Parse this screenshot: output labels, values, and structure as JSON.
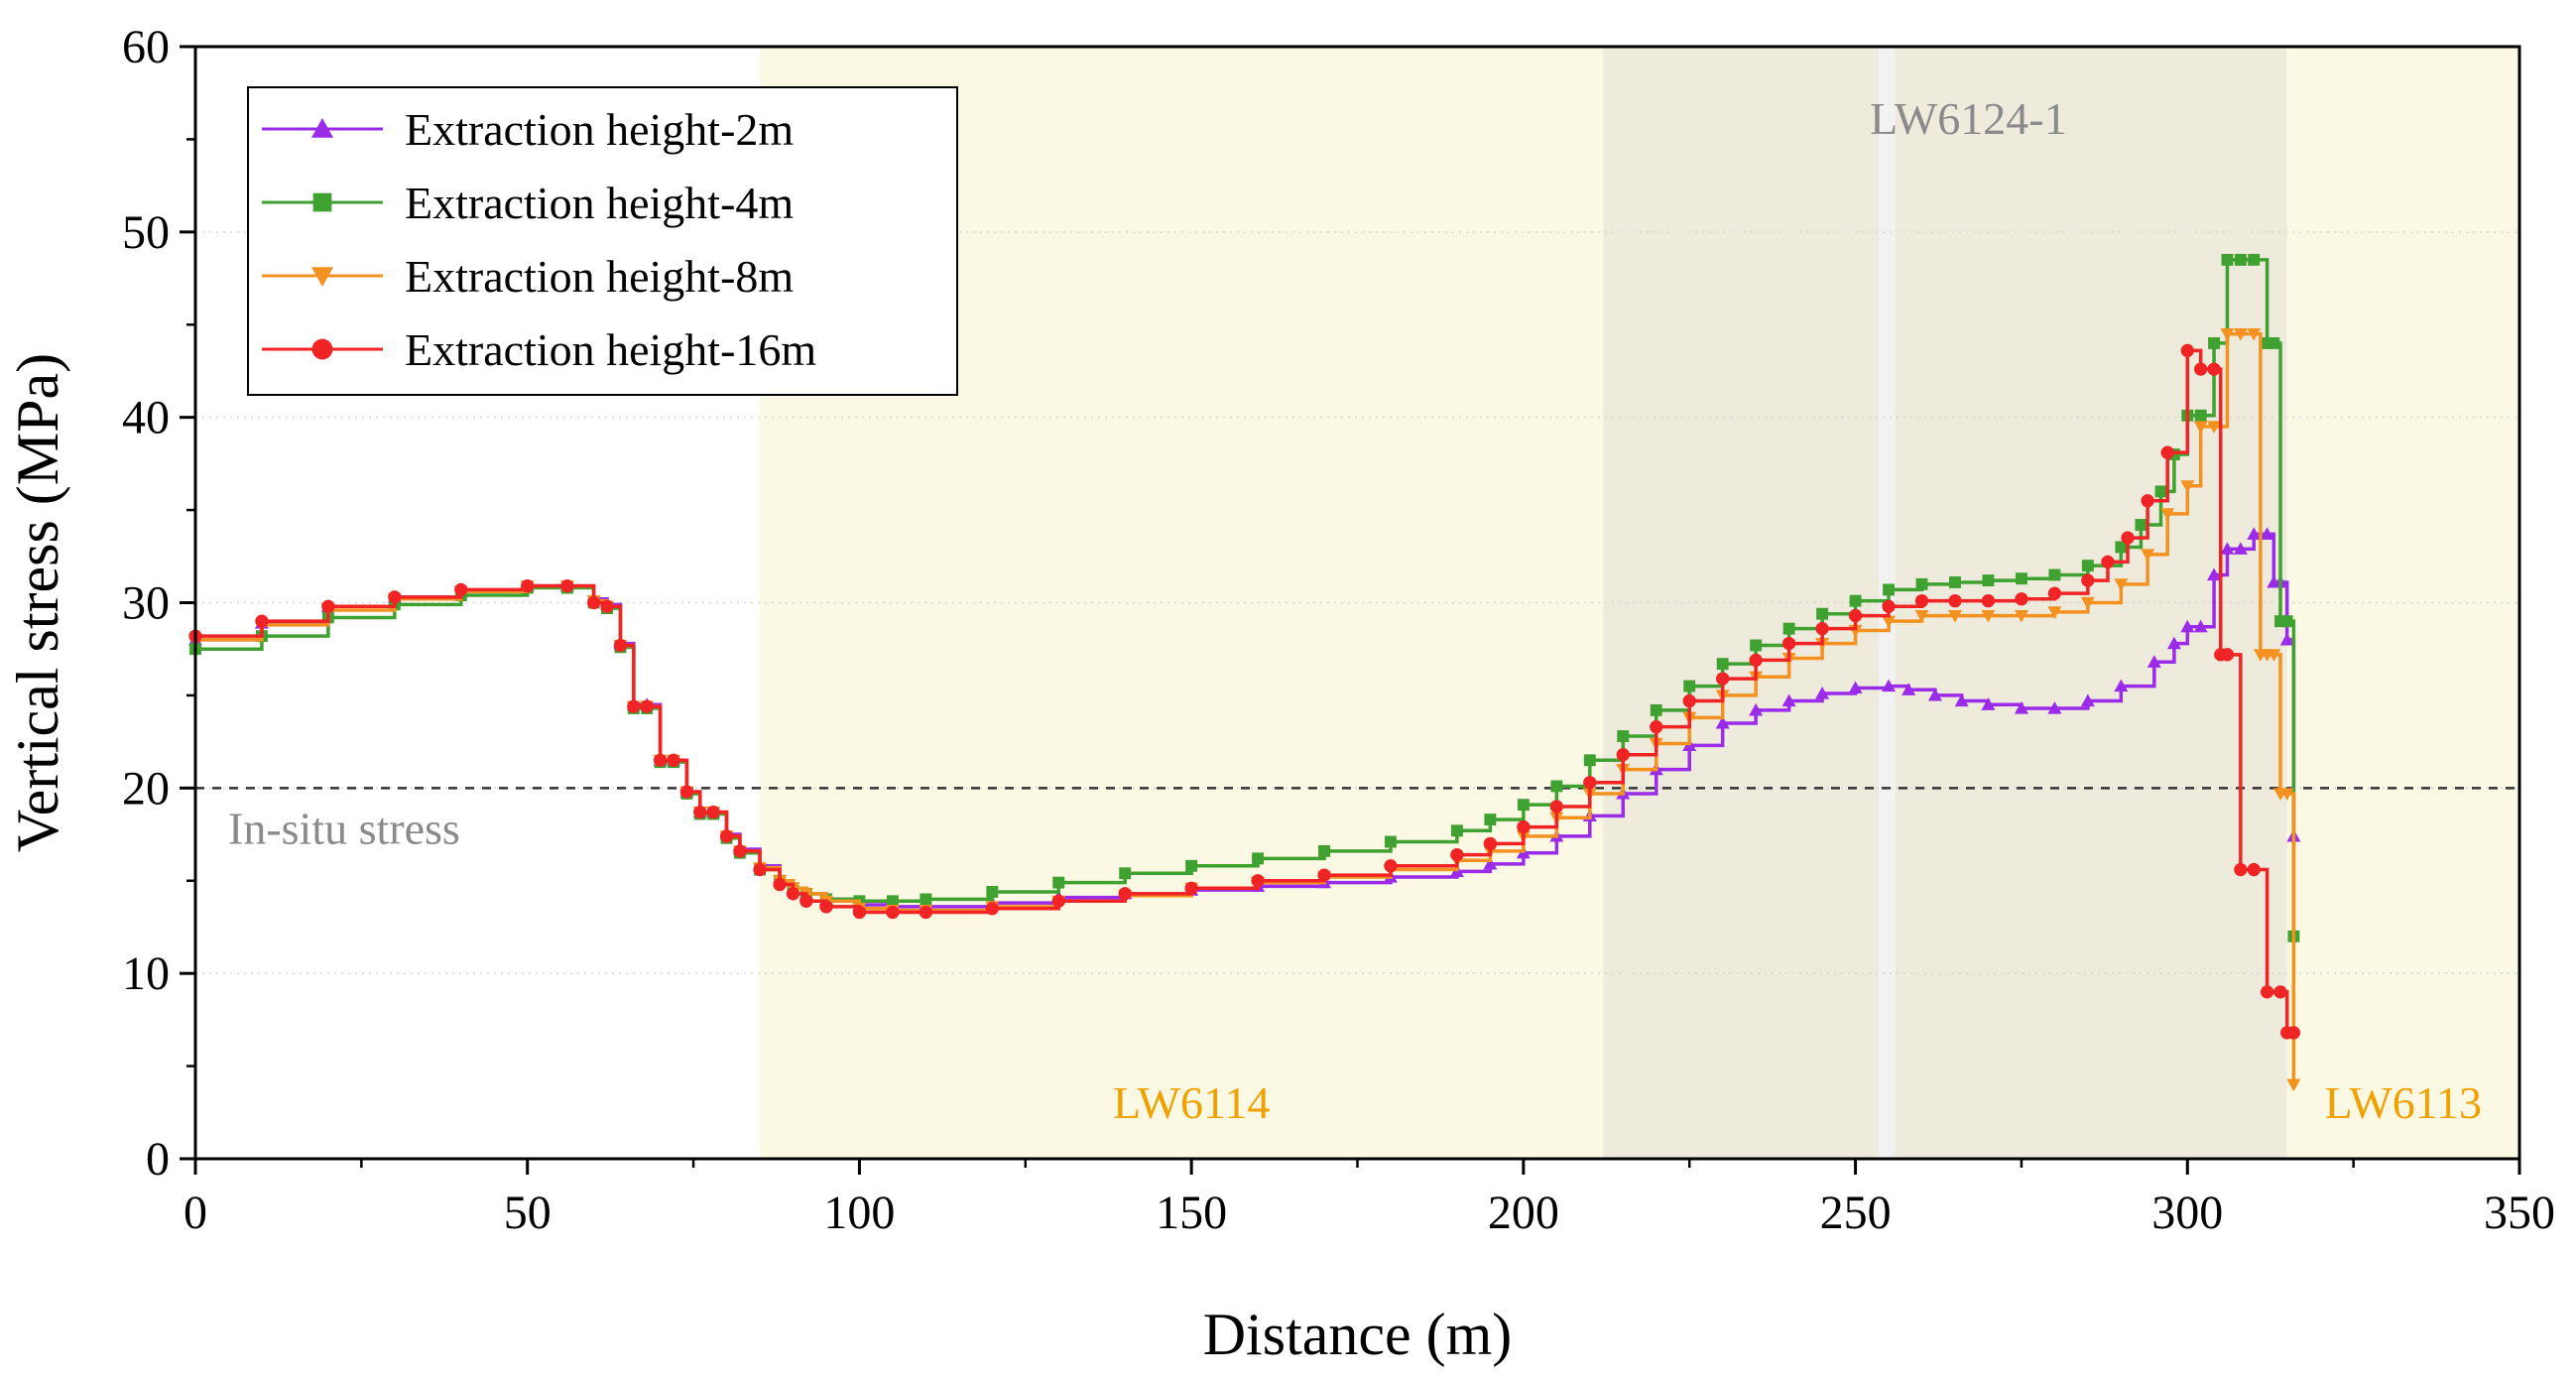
{
  "chart_data": {
    "type": "line",
    "title": "",
    "xlabel": "Distance (m)",
    "ylabel": "Vertical stress (MPa)",
    "xlim": [
      0,
      350
    ],
    "ylim": [
      0,
      60
    ],
    "xticks": [
      0,
      50,
      100,
      150,
      200,
      250,
      300,
      350
    ],
    "yticks": [
      0,
      10,
      20,
      30,
      40,
      50,
      60
    ],
    "xtick_labels": [
      "0",
      "50",
      "100",
      "150",
      "200",
      "250",
      "300",
      "350"
    ],
    "ytick_labels": [
      "0",
      "10",
      "20",
      "30",
      "40",
      "50",
      "60"
    ],
    "legend_position": "top-left",
    "reference_line": {
      "y": 20,
      "label": "In-situ stress",
      "color": "#333333"
    },
    "regions": [
      {
        "name": "LW6114",
        "x": [
          85,
          212
        ],
        "color": "#fbf8e3",
        "label_color": "#f0a000"
      },
      {
        "name": "LW6124-1",
        "x": [
          212,
          315
        ],
        "color": "#eeeadc",
        "label_color": "#8a8a8a"
      },
      {
        "name": "LW6113",
        "x": [
          315,
          350
        ],
        "color": "#fbf8e3",
        "label_color": "#f0a000"
      }
    ],
    "gap": {
      "x": [
        253.5,
        256
      ],
      "color": "#f2f2f2"
    },
    "series": [
      {
        "name": "Extraction height-2m",
        "color": "#9a2be8",
        "marker": "triangle-up",
        "x": [
          0,
          10,
          20,
          30,
          40,
          50,
          56,
          60,
          62,
          64,
          66,
          68,
          70,
          72,
          74,
          76,
          78,
          80,
          82,
          85,
          88,
          90,
          92,
          95,
          100,
          105,
          110,
          120,
          130,
          140,
          150,
          160,
          170,
          180,
          190,
          195,
          200,
          205,
          210,
          215,
          220,
          225,
          230,
          235,
          240,
          245,
          250,
          255,
          258,
          262,
          266,
          270,
          275,
          280,
          285,
          290,
          295,
          298,
          300,
          302,
          304,
          306,
          308,
          310,
          312,
          313,
          314,
          315,
          316
        ],
        "y": [
          28.0,
          28.9,
          29.8,
          30.3,
          30.6,
          30.9,
          30.9,
          30.2,
          29.9,
          27.8,
          24.5,
          24.5,
          21.5,
          21.5,
          19.8,
          18.7,
          18.7,
          17.5,
          16.7,
          15.8,
          15.0,
          14.6,
          14.3,
          14.0,
          13.7,
          13.6,
          13.6,
          13.8,
          14.1,
          14.3,
          14.5,
          14.7,
          14.9,
          15.2,
          15.5,
          15.9,
          16.5,
          17.4,
          18.5,
          19.7,
          21.0,
          22.3,
          23.5,
          24.2,
          24.7,
          25.1,
          25.4,
          25.5,
          25.3,
          25.0,
          24.7,
          24.5,
          24.3,
          24.3,
          24.7,
          25.5,
          26.8,
          27.8,
          28.7,
          28.7,
          31.5,
          32.9,
          32.9,
          33.7,
          33.7,
          31.1,
          31.1,
          28.0,
          17.4
        ]
      },
      {
        "name": "Extraction height-4m",
        "color": "#3fa12f",
        "marker": "square",
        "x": [
          0,
          10,
          20,
          30,
          40,
          50,
          56,
          60,
          62,
          64,
          66,
          68,
          70,
          72,
          74,
          76,
          78,
          80,
          82,
          85,
          88,
          90,
          92,
          95,
          100,
          105,
          110,
          120,
          130,
          140,
          150,
          160,
          170,
          180,
          190,
          195,
          200,
          205,
          210,
          215,
          220,
          225,
          230,
          235,
          240,
          245,
          250,
          255,
          260,
          265,
          270,
          275,
          280,
          285,
          290,
          293,
          296,
          298,
          300,
          302,
          304,
          306,
          308,
          310,
          312,
          313,
          314,
          315,
          316
        ],
        "y": [
          27.5,
          28.2,
          29.2,
          29.9,
          30.4,
          30.8,
          30.8,
          30.0,
          29.7,
          27.6,
          24.3,
          24.3,
          21.4,
          21.4,
          19.7,
          18.6,
          18.6,
          17.3,
          16.5,
          15.6,
          15.0,
          14.6,
          14.3,
          14.0,
          13.9,
          13.9,
          14.0,
          14.4,
          14.9,
          15.4,
          15.8,
          16.2,
          16.6,
          17.1,
          17.7,
          18.3,
          19.1,
          20.1,
          21.5,
          22.8,
          24.2,
          25.5,
          26.7,
          27.7,
          28.6,
          29.4,
          30.1,
          30.7,
          31.0,
          31.1,
          31.2,
          31.3,
          31.5,
          32.0,
          33.0,
          34.2,
          36.0,
          38.0,
          40.1,
          40.1,
          44.0,
          48.5,
          48.5,
          48.5,
          44.0,
          44.0,
          29.0,
          29.0,
          12.0
        ]
      },
      {
        "name": "Extraction height-8m",
        "color": "#f39220",
        "marker": "triangle-down",
        "x": [
          0,
          10,
          20,
          30,
          40,
          50,
          56,
          60,
          62,
          64,
          66,
          68,
          70,
          72,
          74,
          76,
          78,
          80,
          82,
          85,
          88,
          90,
          92,
          95,
          100,
          105,
          110,
          120,
          130,
          140,
          150,
          160,
          170,
          180,
          190,
          195,
          200,
          205,
          210,
          215,
          220,
          225,
          230,
          235,
          240,
          245,
          250,
          255,
          260,
          265,
          270,
          275,
          280,
          285,
          290,
          294,
          297,
          300,
          302,
          304,
          306,
          308,
          310,
          311,
          312,
          313,
          314,
          315,
          316
        ],
        "y": [
          28.0,
          28.8,
          29.6,
          30.2,
          30.6,
          30.9,
          30.9,
          30.1,
          29.8,
          27.7,
          24.4,
          24.4,
          21.5,
          21.5,
          19.8,
          18.7,
          18.7,
          17.4,
          16.6,
          15.7,
          15.0,
          14.6,
          14.3,
          13.9,
          13.5,
          13.4,
          13.4,
          13.6,
          13.9,
          14.2,
          14.6,
          14.9,
          15.2,
          15.6,
          16.1,
          16.6,
          17.4,
          18.4,
          19.7,
          21.0,
          22.4,
          23.8,
          25.0,
          26.0,
          27.0,
          27.8,
          28.5,
          29.0,
          29.3,
          29.3,
          29.3,
          29.3,
          29.5,
          30.0,
          31.0,
          32.6,
          34.8,
          36.3,
          39.5,
          39.5,
          44.5,
          44.5,
          44.5,
          27.2,
          27.2,
          27.2,
          19.7,
          19.7,
          4.0
        ]
      },
      {
        "name": "Extraction height-16m",
        "color": "#f02424",
        "marker": "circle",
        "x": [
          0,
          10,
          20,
          30,
          40,
          50,
          56,
          60,
          62,
          64,
          66,
          68,
          70,
          72,
          74,
          76,
          78,
          80,
          82,
          85,
          88,
          90,
          92,
          95,
          100,
          105,
          110,
          120,
          130,
          140,
          150,
          160,
          170,
          180,
          190,
          195,
          200,
          205,
          210,
          215,
          220,
          225,
          230,
          235,
          240,
          245,
          250,
          255,
          260,
          265,
          270,
          275,
          280,
          285,
          288,
          291,
          294,
          297,
          300,
          302,
          304,
          305,
          306,
          308,
          310,
          312,
          314,
          315,
          316
        ],
        "y": [
          28.2,
          29.0,
          29.8,
          30.3,
          30.7,
          30.9,
          30.9,
          30.0,
          29.8,
          27.7,
          24.4,
          24.4,
          21.5,
          21.5,
          19.8,
          18.7,
          18.7,
          17.4,
          16.6,
          15.6,
          14.8,
          14.3,
          13.9,
          13.6,
          13.3,
          13.3,
          13.3,
          13.5,
          13.9,
          14.3,
          14.6,
          15.0,
          15.3,
          15.8,
          16.4,
          17.0,
          17.9,
          19.0,
          20.3,
          21.8,
          23.3,
          24.7,
          25.9,
          26.9,
          27.8,
          28.6,
          29.3,
          29.8,
          30.1,
          30.1,
          30.1,
          30.2,
          30.5,
          31.2,
          32.2,
          33.5,
          35.5,
          38.1,
          43.6,
          42.6,
          42.6,
          27.2,
          27.2,
          15.6,
          15.6,
          9.0,
          9.0,
          6.8,
          6.8
        ]
      }
    ]
  }
}
